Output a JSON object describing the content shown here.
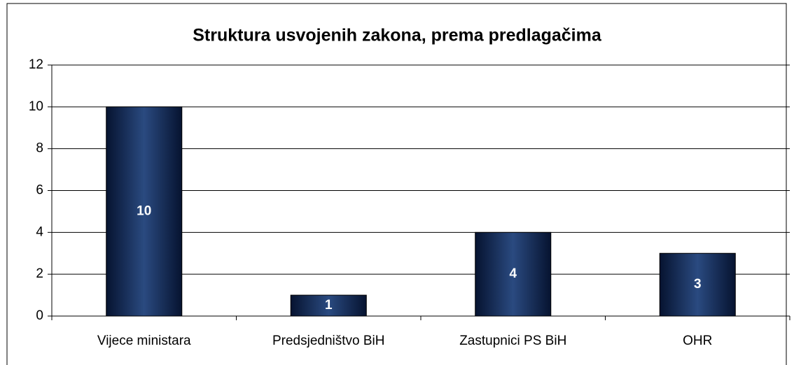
{
  "chart_data": {
    "type": "bar",
    "title": "Struktura usvojenih zakona, prema predlagačima",
    "categories": [
      "Vijece ministara",
      "Predsjedništvo BiH",
      "Zastupnici PS BiH",
      "OHR"
    ],
    "values": [
      10,
      1,
      4,
      3
    ],
    "color": "#2a4a80",
    "ylim": [
      0,
      12
    ],
    "yticks": [
      0,
      2,
      4,
      6,
      8,
      10,
      12
    ],
    "grid": true
  }
}
